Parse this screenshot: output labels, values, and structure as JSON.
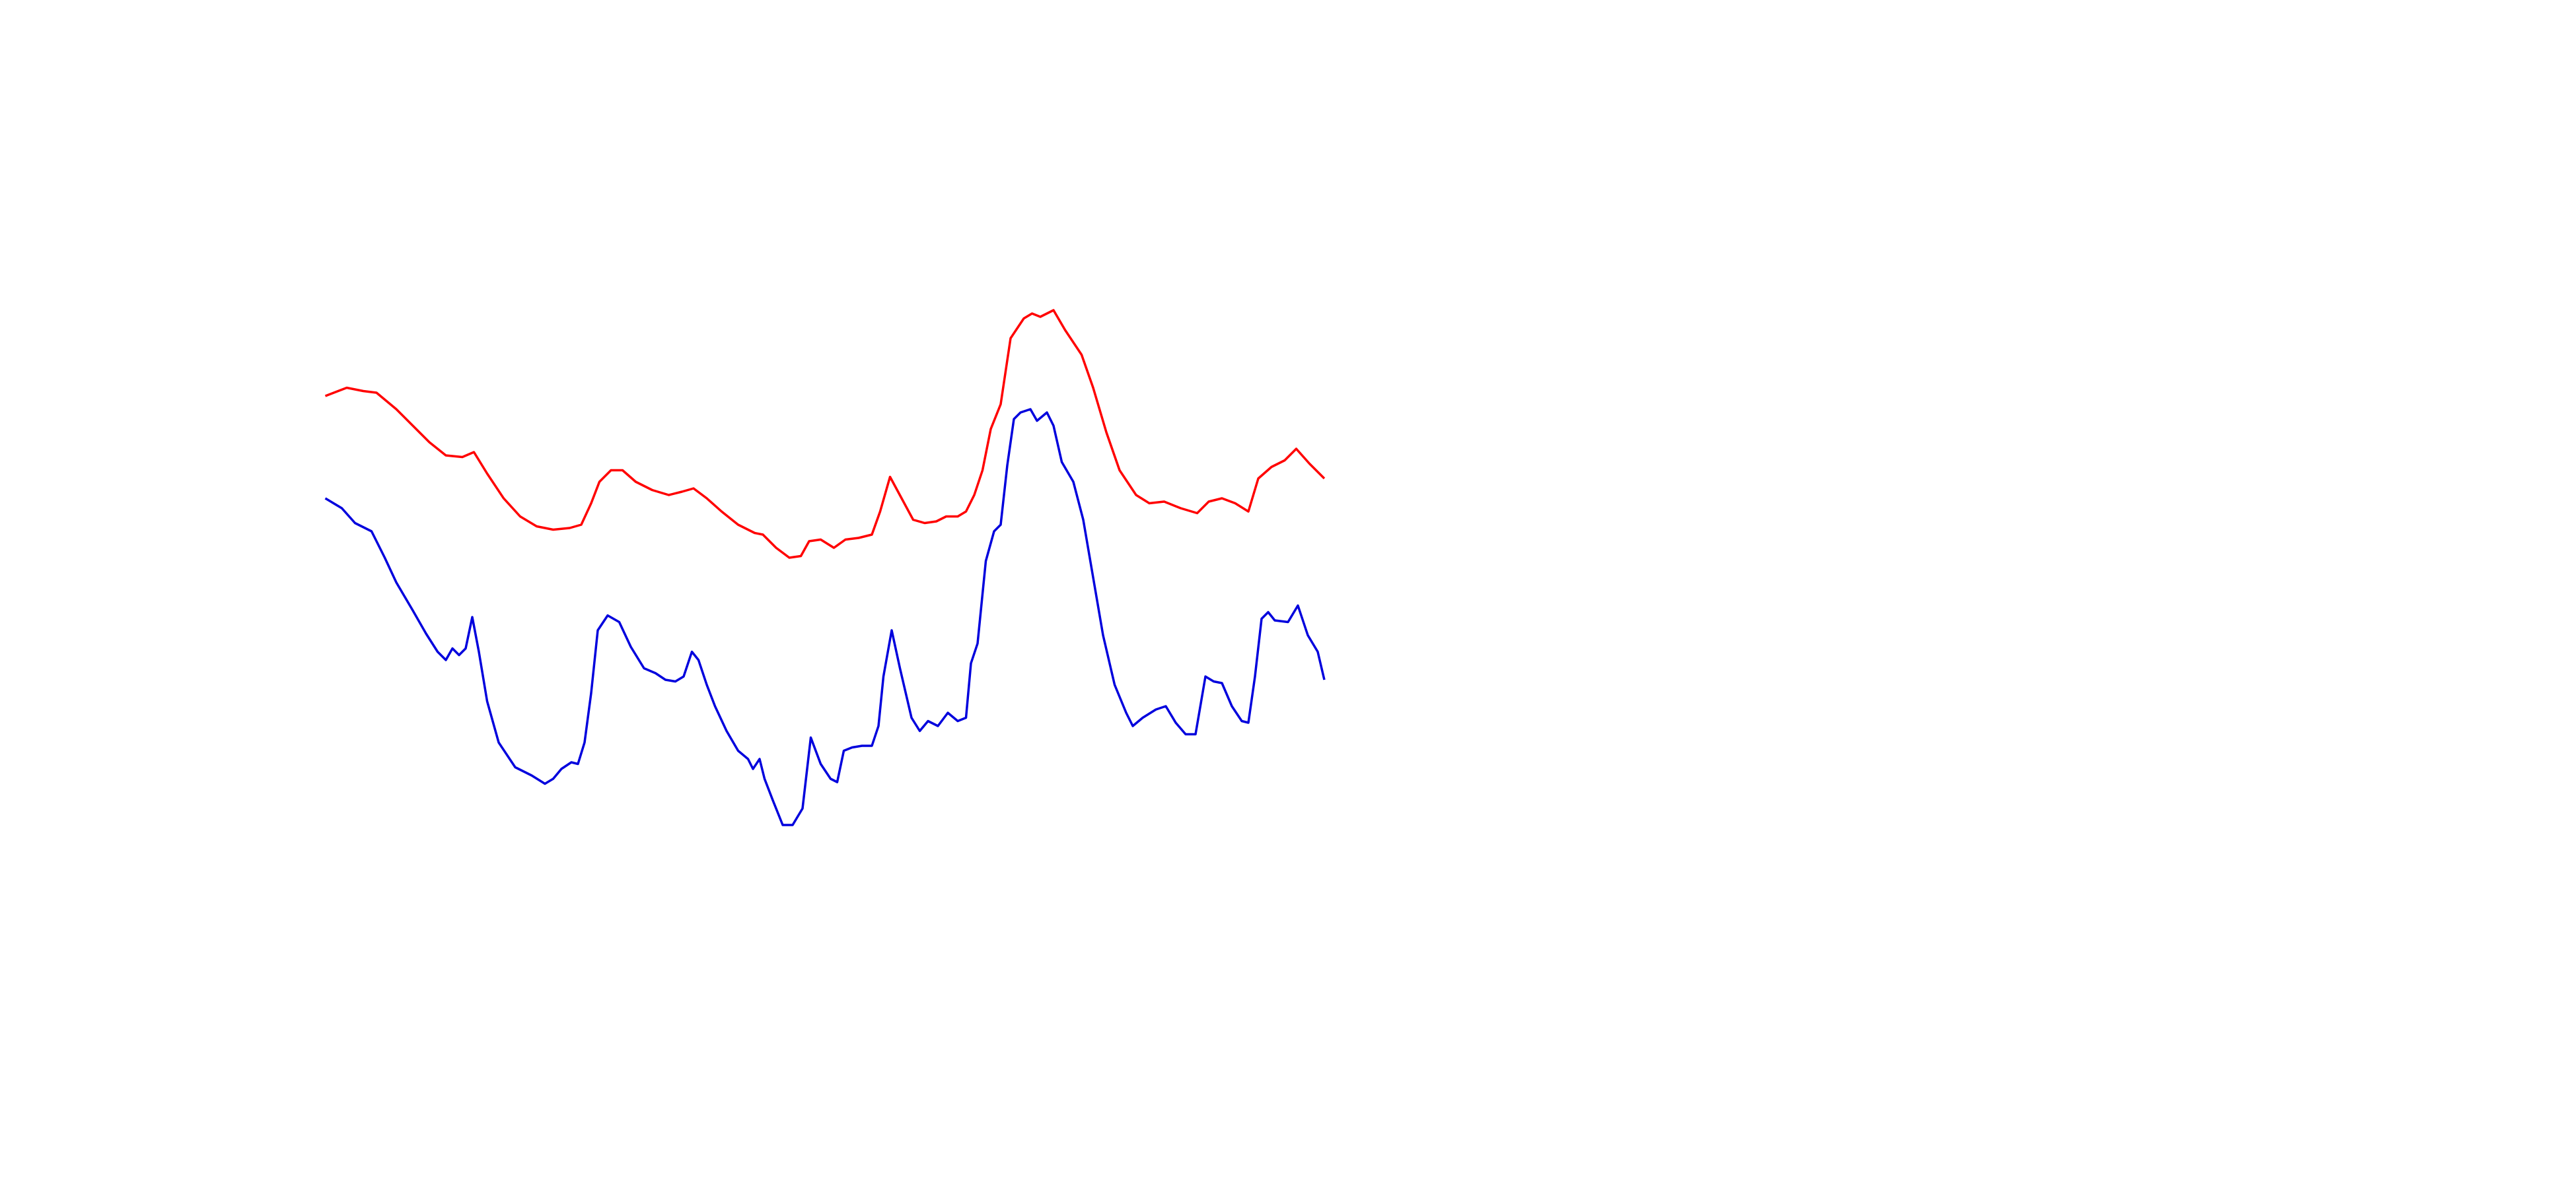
{
  "chart_data": {
    "type": "line",
    "xlim": [
      0,
      1560
    ],
    "ylim": [
      0,
      720
    ],
    "series": [
      {
        "color": "#ff0000",
        "x": [
          197,
          210,
          220,
          228,
          240,
          250,
          260,
          270,
          280,
          287,
          295,
          305,
          315,
          325,
          335,
          345,
          352,
          358,
          363,
          370,
          377,
          385,
          395,
          405,
          413,
          420,
          428,
          437,
          447,
          457,
          462,
          470,
          478,
          485,
          490,
          497,
          505,
          512,
          520,
          528,
          533,
          539,
          546,
          553,
          560,
          567,
          573,
          580,
          585,
          590,
          595,
          600,
          606,
          612,
          620,
          625,
          630,
          638,
          645,
          655,
          662,
          670,
          678,
          688,
          696,
          705,
          715,
          725,
          732,
          740,
          748,
          756,
          762,
          770,
          778,
          785,
          793,
          802
        ],
        "values": [
          480,
          485,
          483,
          482,
          472,
          462,
          452,
          444,
          443,
          446,
          433,
          418,
          407,
          401,
          399,
          400,
          402,
          415,
          428,
          435,
          435,
          428,
          423,
          420,
          422,
          424,
          418,
          410,
          402,
          397,
          396,
          388,
          382,
          383,
          392,
          393,
          388,
          393,
          394,
          396,
          410,
          431,
          418,
          405,
          403,
          404,
          407,
          407,
          410,
          420,
          435,
          460,
          475,
          515,
          527,
          530,
          528,
          532,
          520,
          505,
          485,
          458,
          435,
          420,
          415,
          416,
          412,
          409,
          416,
          418,
          415,
          410,
          430,
          437,
          441,
          448,
          439,
          430
        ]
      },
      {
        "color": "#0000dd",
        "x": [
          197,
          207,
          215,
          225,
          233,
          240,
          250,
          258,
          265,
          270,
          274,
          278,
          282,
          286,
          290,
          295,
          302,
          312,
          322,
          330,
          335,
          340,
          346,
          350,
          354,
          358,
          362,
          368,
          375,
          382,
          390,
          397,
          403,
          409,
          414,
          419,
          423,
          428,
          433,
          440,
          447,
          453,
          456,
          460,
          463,
          468,
          474,
          480,
          486,
          491,
          497,
          503,
          507,
          511,
          516,
          522,
          528,
          532,
          535,
          540,
          545,
          552,
          557,
          562,
          568,
          574,
          580,
          585,
          588,
          592,
          597,
          602,
          606,
          610,
          614,
          618,
          624,
          628,
          634,
          638,
          643,
          650,
          656,
          662,
          668,
          675,
          682,
          686,
          692,
          700,
          706,
          712,
          718,
          724,
          730,
          735,
          740,
          746,
          752,
          756,
          760,
          764,
          768,
          772,
          780,
          786,
          792,
          798,
          802
        ],
        "values": [
          418,
          412,
          403,
          398,
          382,
          367,
          350,
          336,
          325,
          320,
          327,
          323,
          327,
          346,
          325,
          295,
          270,
          255,
          250,
          245,
          248,
          254,
          258,
          257,
          270,
          300,
          338,
          347,
          343,
          328,
          315,
          312,
          308,
          307,
          310,
          325,
          320,
          305,
          292,
          277,
          265,
          260,
          254,
          260,
          248,
          235,
          220,
          220,
          230,
          273,
          257,
          248,
          246,
          265,
          267,
          268,
          268,
          280,
          310,
          338,
          315,
          285,
          277,
          283,
          280,
          288,
          283,
          285,
          318,
          330,
          380,
          398,
          402,
          438,
          466,
          470,
          472,
          465,
          470,
          462,
          440,
          428,
          405,
          370,
          335,
          305,
          288,
          280,
          285,
          290,
          292,
          282,
          275,
          275,
          310,
          307,
          306,
          292,
          283,
          282,
          310,
          345,
          349,
          344,
          343,
          353,
          335,
          325,
          308
        ]
      }
    ]
  }
}
